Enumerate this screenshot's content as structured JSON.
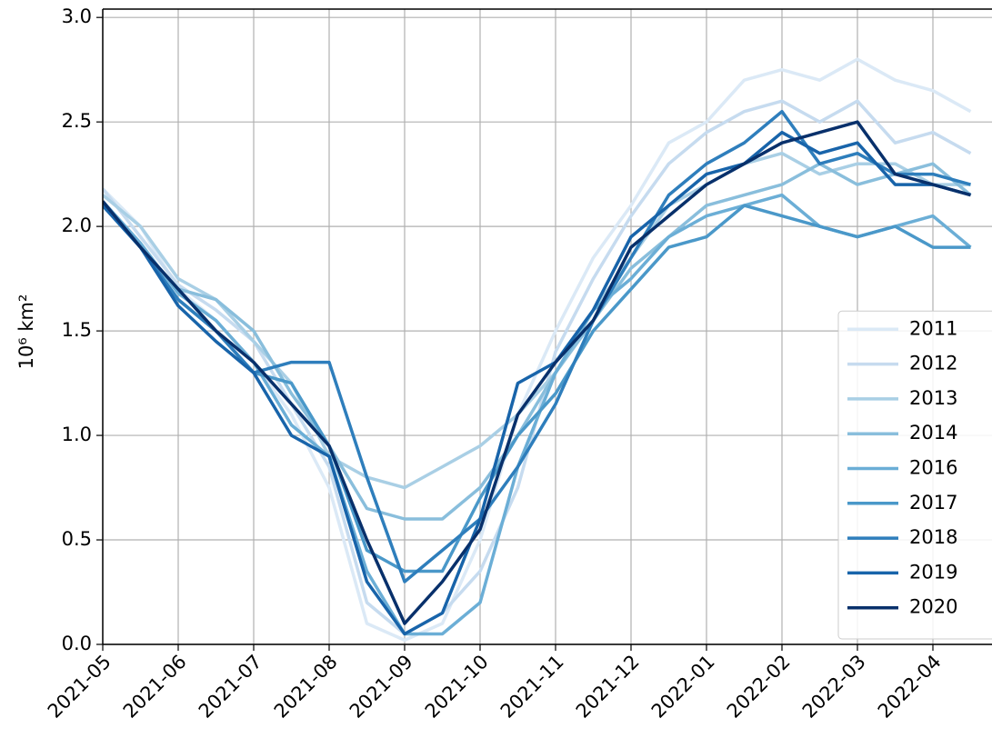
{
  "chart_data": {
    "type": "line",
    "y_label": "10⁶ km²",
    "categories": [
      "2021-05",
      null,
      "2021-06",
      null,
      "2021-07",
      null,
      "2021-08",
      null,
      "2021-09",
      null,
      "2021-10",
      null,
      "2021-11",
      null,
      "2021-12",
      null,
      "2022-01",
      null,
      "2022-02",
      null,
      "2022-03",
      null,
      "2022-04",
      null
    ],
    "ylim": [
      0,
      3.04
    ],
    "yticks": [
      {
        "value": 0,
        "label": "0.0"
      },
      0.5,
      {
        "value": 1,
        "label": "1.0"
      },
      1.5,
      {
        "value": 2,
        "label": "2.0"
      },
      2.5,
      {
        "value": 3,
        "label": "3.0"
      }
    ],
    "grid": true,
    "legend": "lower right",
    "series": [
      {
        "name": "2011",
        "color": "#dbe9f6",
        "values": [
          2.18,
          2.0,
          1.7,
          1.55,
          1.35,
          1.1,
          0.75,
          0.1,
          0.02,
          0.1,
          0.5,
          1.1,
          1.5,
          1.85,
          2.1,
          2.4,
          2.5,
          2.7,
          2.75,
          2.7,
          2.8,
          2.7,
          2.65,
          2.55
        ]
      },
      {
        "name": "2012",
        "color": "#c6dbef",
        "values": [
          2.18,
          1.95,
          1.72,
          1.6,
          1.45,
          1.15,
          0.85,
          0.2,
          0.05,
          0.15,
          0.35,
          0.75,
          1.4,
          1.75,
          2.05,
          2.3,
          2.45,
          2.55,
          2.6,
          2.5,
          2.6,
          2.4,
          2.45,
          2.35
        ]
      },
      {
        "name": "2013",
        "color": "#a9cfe5",
        "values": [
          2.15,
          2.0,
          1.75,
          1.65,
          1.45,
          1.25,
          0.9,
          0.8,
          0.75,
          0.85,
          0.95,
          1.1,
          1.3,
          1.6,
          1.85,
          2.1,
          2.2,
          2.3,
          2.35,
          2.25,
          2.3,
          2.3,
          2.2,
          2.2
        ]
      },
      {
        "name": "2014",
        "color": "#89bedc",
        "values": [
          2.1,
          1.9,
          1.7,
          1.65,
          1.5,
          1.2,
          0.95,
          0.65,
          0.6,
          0.6,
          0.75,
          1.0,
          1.3,
          1.55,
          1.8,
          1.95,
          2.1,
          2.15,
          2.2,
          2.3,
          2.2,
          2.25,
          2.3,
          2.15
        ]
      },
      {
        "name": "2016",
        "color": "#6baed6",
        "values": [
          2.12,
          1.92,
          1.68,
          1.55,
          1.35,
          1.05,
          0.9,
          0.35,
          0.05,
          0.05,
          0.2,
          0.85,
          1.3,
          1.6,
          1.75,
          1.95,
          2.05,
          2.1,
          2.15,
          2.0,
          1.95,
          2.0,
          2.05,
          1.9
        ]
      },
      {
        "name": "2017",
        "color": "#4a98c9",
        "values": [
          2.12,
          1.9,
          1.65,
          1.5,
          1.3,
          1.25,
          0.95,
          0.45,
          0.35,
          0.35,
          0.7,
          1.0,
          1.2,
          1.5,
          1.7,
          1.9,
          1.95,
          2.1,
          2.05,
          2.0,
          1.95,
          2.0,
          1.9,
          1.9
        ]
      },
      {
        "name": "2018",
        "color": "#2e7ebc",
        "values": [
          2.1,
          1.9,
          1.65,
          1.5,
          1.3,
          1.35,
          1.35,
          0.8,
          0.3,
          0.45,
          0.6,
          0.85,
          1.15,
          1.55,
          1.85,
          2.15,
          2.3,
          2.4,
          2.55,
          2.3,
          2.35,
          2.25,
          2.25,
          2.2
        ]
      },
      {
        "name": "2019",
        "color": "#1864aa",
        "values": [
          2.1,
          1.9,
          1.62,
          1.45,
          1.3,
          1.0,
          0.9,
          0.3,
          0.05,
          0.15,
          0.6,
          1.25,
          1.35,
          1.6,
          1.95,
          2.1,
          2.25,
          2.3,
          2.45,
          2.35,
          2.4,
          2.2,
          2.2,
          2.15
        ]
      },
      {
        "name": "2020",
        "color": "#08306b",
        "values": [
          2.12,
          1.9,
          1.7,
          1.5,
          1.35,
          1.15,
          0.95,
          0.5,
          0.1,
          0.3,
          0.55,
          1.1,
          1.35,
          1.55,
          1.9,
          2.05,
          2.2,
          2.3,
          2.4,
          2.45,
          2.5,
          2.25,
          2.2,
          2.15
        ]
      }
    ]
  }
}
